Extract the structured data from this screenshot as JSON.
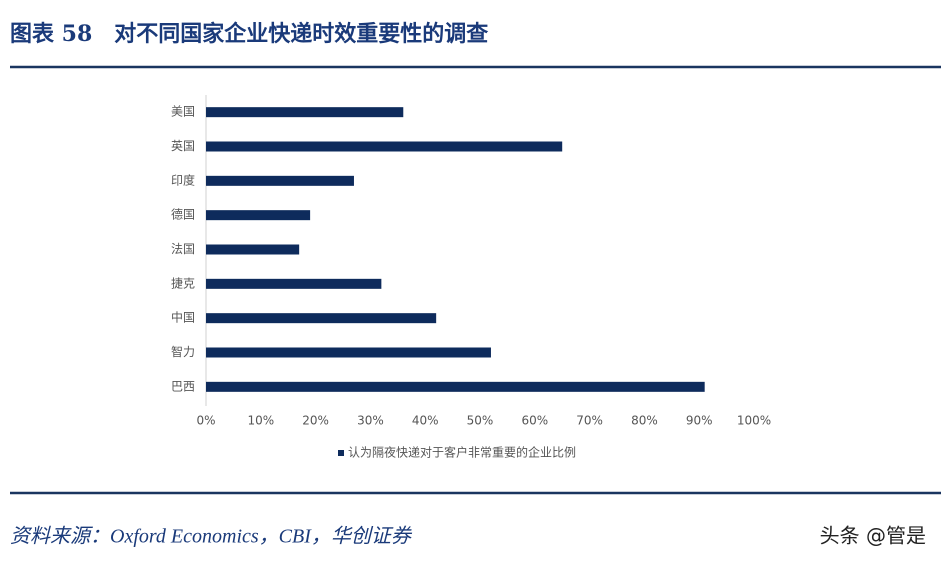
{
  "header": {
    "title": "图表 58　对不同国家企业快递时效重要性的调查"
  },
  "chart_data": {
    "type": "bar",
    "orientation": "horizontal",
    "categories": [
      "美国",
      "英国",
      "印度",
      "德国",
      "法国",
      "捷克",
      "中国",
      "智力",
      "巴西"
    ],
    "series": [
      {
        "name": "认为隔夜快递对于客户非常重要的企业比例",
        "color": "#0e2b5c",
        "values": [
          36,
          65,
          27,
          19,
          17,
          32,
          42,
          52,
          91
        ]
      }
    ],
    "xlim": [
      0,
      100
    ],
    "xticks": [
      {
        "value": 0,
        "label": "0%"
      },
      {
        "value": 10,
        "label": "10%"
      },
      {
        "value": 20,
        "label": "20%"
      },
      {
        "value": 30,
        "label": "30%"
      },
      {
        "value": 40,
        "label": "40%"
      },
      {
        "value": 50,
        "label": "50%"
      },
      {
        "value": 60,
        "label": "60%"
      },
      {
        "value": 70,
        "label": "70%"
      },
      {
        "value": 80,
        "label": "80%"
      },
      {
        "value": 90,
        "label": "90%"
      },
      {
        "value": 100,
        "label": "100%"
      }
    ],
    "legend": "bottom"
  },
  "footer": {
    "source": "资料来源：Oxford Economics，CBI，华创证券",
    "watermark": "头条 @管是"
  }
}
